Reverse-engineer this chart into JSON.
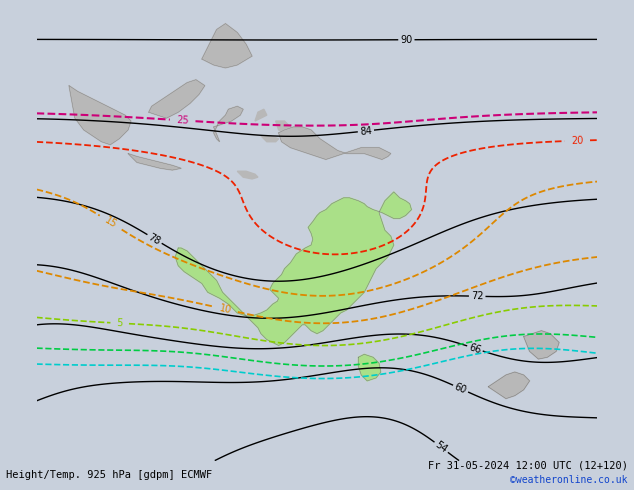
{
  "title_left": "Height/Temp. 925 hPa [gdpm] ECMWF",
  "title_right": "Fr 31-05-2024 12:00 UTC (12+120)",
  "credit": "©weatheronline.co.uk",
  "credit_color": "#1144cc",
  "background_color": "#c8d0dc",
  "land_color": "#b8b8b8",
  "australia_color": "#aae088",
  "fig_width": 6.34,
  "fig_height": 4.9,
  "dpi": 100,
  "label_fontsize": 7,
  "title_fontsize": 7.5
}
